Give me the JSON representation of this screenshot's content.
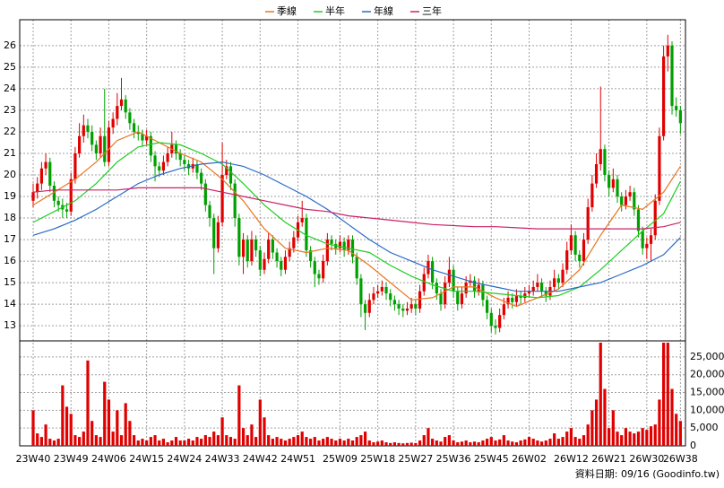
{
  "chart_data": {
    "type": "candlestick",
    "legend": "top",
    "grid": true,
    "up_color": "#e00000",
    "down_color": "#00a000",
    "xlim": [
      -3.2,
      155.2
    ],
    "xticks": [
      {
        "value": 0,
        "label": "23W40"
      },
      {
        "value": 9,
        "label": "23W49"
      },
      {
        "value": 18,
        "label": "24W06"
      },
      {
        "value": 27,
        "label": "24W15"
      },
      {
        "value": 36,
        "label": "24W24"
      },
      {
        "value": 45,
        "label": "24W33"
      },
      {
        "value": 54,
        "label": "24W42"
      },
      {
        "value": 63,
        "label": "24W51"
      },
      {
        "value": 73,
        "label": "25W09"
      },
      {
        "value": 82,
        "label": "25W18"
      },
      {
        "value": 91,
        "label": "25W27"
      },
      {
        "value": 100,
        "label": "25W36"
      },
      {
        "value": 109,
        "label": "25W45"
      },
      {
        "value": 118,
        "label": "26W02"
      },
      {
        "value": 128,
        "label": "26W12"
      },
      {
        "value": 137,
        "label": "26W21"
      },
      {
        "value": 146,
        "label": "26W30"
      },
      {
        "value": 154,
        "label": "26W38"
      }
    ],
    "ylim": [
      12.3,
      27.2
    ],
    "yticks": [
      13,
      14,
      15,
      16,
      17,
      18,
      19,
      20,
      21,
      22,
      23,
      24,
      25,
      26
    ],
    "ohlc": [
      [
        18.8,
        19.6,
        18.5,
        19.2
      ],
      [
        19.2,
        19.9,
        18.9,
        19.6
      ],
      [
        19.6,
        20.6,
        19.3,
        20.3
      ],
      [
        20.3,
        21.0,
        20.0,
        20.6
      ],
      [
        20.6,
        20.8,
        19.2,
        19.5
      ],
      [
        19.5,
        19.7,
        18.5,
        18.8
      ],
      [
        18.8,
        19.0,
        18.3,
        18.6
      ],
      [
        18.6,
        18.9,
        18.0,
        18.4
      ],
      [
        18.4,
        18.7,
        18.0,
        18.3
      ],
      [
        18.3,
        20.1,
        18.1,
        19.8
      ],
      [
        19.8,
        21.3,
        19.6,
        21.0
      ],
      [
        21.0,
        22.4,
        20.8,
        21.8
      ],
      [
        21.8,
        22.8,
        21.5,
        22.3
      ],
      [
        22.3,
        22.6,
        21.7,
        22.0
      ],
      [
        22.0,
        22.3,
        21.1,
        21.4
      ],
      [
        21.4,
        21.6,
        20.7,
        21.0
      ],
      [
        21.0,
        22.2,
        20.8,
        21.8
      ],
      [
        21.8,
        24.0,
        20.4,
        20.6
      ],
      [
        20.6,
        22.5,
        20.4,
        22.2
      ],
      [
        22.2,
        22.9,
        21.9,
        22.6
      ],
      [
        22.6,
        23.8,
        22.3,
        23.2
      ],
      [
        23.2,
        24.5,
        23.0,
        23.5
      ],
      [
        23.5,
        23.7,
        22.6,
        22.9
      ],
      [
        22.9,
        23.1,
        22.1,
        22.4
      ],
      [
        22.4,
        22.6,
        21.7,
        22.0
      ],
      [
        22.0,
        22.3,
        21.6,
        21.9
      ],
      [
        21.9,
        22.1,
        21.3,
        21.6
      ],
      [
        21.6,
        22.1,
        21.4,
        21.8
      ],
      [
        21.8,
        22.0,
        20.6,
        20.9
      ],
      [
        20.9,
        21.1,
        19.7,
        20.4
      ],
      [
        20.4,
        20.6,
        19.9,
        20.2
      ],
      [
        20.2,
        20.9,
        20.0,
        20.6
      ],
      [
        20.6,
        21.3,
        20.4,
        21.0
      ],
      [
        21.0,
        22.0,
        20.8,
        21.4
      ],
      [
        21.4,
        21.6,
        20.7,
        21.0
      ],
      [
        21.0,
        21.2,
        20.4,
        20.7
      ],
      [
        20.7,
        20.9,
        20.2,
        20.5
      ],
      [
        20.5,
        20.7,
        20.0,
        20.3
      ],
      [
        20.3,
        20.8,
        20.1,
        20.5
      ],
      [
        20.5,
        20.7,
        19.8,
        20.1
      ],
      [
        20.1,
        20.3,
        19.3,
        19.6
      ],
      [
        19.6,
        19.8,
        18.3,
        18.6
      ],
      [
        18.6,
        18.8,
        17.6,
        18.0
      ],
      [
        18.0,
        18.2,
        15.4,
        16.6
      ],
      [
        16.6,
        18.1,
        16.4,
        17.8
      ],
      [
        17.8,
        21.5,
        17.6,
        20.0
      ],
      [
        20.0,
        20.7,
        19.8,
        20.4
      ],
      [
        20.4,
        20.6,
        19.3,
        19.6
      ],
      [
        19.6,
        19.8,
        17.6,
        18.0
      ],
      [
        18.0,
        18.2,
        15.8,
        16.2
      ],
      [
        16.2,
        17.3,
        15.4,
        17.0
      ],
      [
        17.0,
        17.2,
        15.7,
        16.0
      ],
      [
        16.0,
        17.4,
        15.8,
        17.0
      ],
      [
        17.0,
        17.2,
        16.2,
        16.5
      ],
      [
        16.5,
        16.7,
        15.3,
        15.6
      ],
      [
        15.6,
        16.4,
        15.4,
        16.1
      ],
      [
        16.1,
        17.3,
        15.9,
        17.0
      ],
      [
        17.0,
        17.2,
        16.1,
        16.4
      ],
      [
        16.4,
        16.6,
        15.7,
        16.0
      ],
      [
        16.0,
        16.2,
        15.3,
        15.6
      ],
      [
        15.6,
        16.5,
        15.4,
        16.2
      ],
      [
        16.2,
        16.9,
        16.0,
        16.6
      ],
      [
        16.6,
        17.4,
        16.4,
        17.1
      ],
      [
        17.1,
        18.1,
        16.9,
        17.8
      ],
      [
        17.8,
        18.8,
        17.6,
        18.0
      ],
      [
        18.0,
        18.2,
        16.2,
        16.5
      ],
      [
        16.5,
        16.7,
        15.7,
        16.0
      ],
      [
        16.0,
        16.2,
        14.8,
        15.4
      ],
      [
        15.4,
        15.6,
        14.9,
        15.2
      ],
      [
        15.2,
        16.3,
        15.0,
        16.0
      ],
      [
        16.0,
        17.3,
        15.8,
        17.0
      ],
      [
        17.0,
        17.2,
        16.5,
        16.8
      ],
      [
        16.8,
        17.0,
        16.3,
        16.6
      ],
      [
        16.6,
        17.2,
        16.4,
        16.9
      ],
      [
        16.9,
        17.1,
        16.2,
        16.5
      ],
      [
        16.5,
        17.2,
        16.3,
        17.0
      ],
      [
        17.0,
        17.2,
        15.9,
        16.2
      ],
      [
        16.2,
        16.4,
        14.9,
        15.2
      ],
      [
        15.2,
        15.4,
        13.4,
        14.0
      ],
      [
        14.0,
        14.2,
        12.8,
        13.6
      ],
      [
        13.6,
        14.5,
        13.4,
        14.2
      ],
      [
        14.2,
        14.8,
        14.0,
        14.5
      ],
      [
        14.5,
        14.9,
        14.3,
        14.6
      ],
      [
        14.6,
        15.1,
        14.4,
        14.8
      ],
      [
        14.8,
        15.0,
        14.2,
        14.5
      ],
      [
        14.5,
        14.7,
        13.9,
        14.2
      ],
      [
        14.2,
        14.4,
        13.7,
        14.0
      ],
      [
        14.0,
        14.2,
        13.5,
        13.8
      ],
      [
        13.8,
        14.0,
        13.4,
        13.7
      ],
      [
        13.7,
        14.1,
        13.5,
        13.8
      ],
      [
        13.8,
        14.3,
        13.6,
        14.0
      ],
      [
        14.0,
        14.2,
        13.5,
        13.8
      ],
      [
        13.8,
        14.9,
        13.6,
        14.6
      ],
      [
        14.6,
        15.7,
        14.4,
        15.4
      ],
      [
        15.4,
        16.3,
        15.2,
        16.0
      ],
      [
        16.0,
        16.2,
        14.7,
        15.0
      ],
      [
        15.0,
        15.2,
        14.2,
        14.5
      ],
      [
        14.5,
        14.7,
        13.7,
        14.0
      ],
      [
        14.0,
        15.3,
        13.8,
        15.0
      ],
      [
        15.0,
        16.2,
        14.8,
        15.6
      ],
      [
        15.6,
        15.8,
        14.3,
        14.6
      ],
      [
        14.6,
        14.8,
        13.7,
        14.0
      ],
      [
        14.0,
        14.8,
        13.8,
        14.5
      ],
      [
        14.5,
        15.3,
        14.3,
        15.0
      ],
      [
        15.0,
        15.4,
        14.8,
        15.1
      ],
      [
        15.1,
        15.3,
        14.3,
        14.6
      ],
      [
        14.6,
        15.2,
        14.4,
        14.9
      ],
      [
        14.9,
        15.1,
        13.9,
        14.2
      ],
      [
        14.2,
        14.4,
        13.3,
        13.6
      ],
      [
        13.6,
        13.8,
        12.7,
        13.0
      ],
      [
        13.0,
        13.3,
        12.6,
        12.9
      ],
      [
        12.9,
        13.8,
        12.7,
        13.5
      ],
      [
        13.5,
        14.3,
        13.3,
        14.0
      ],
      [
        14.0,
        14.6,
        13.8,
        14.3
      ],
      [
        14.3,
        14.5,
        13.8,
        14.1
      ],
      [
        14.1,
        14.7,
        13.9,
        14.4
      ],
      [
        14.4,
        14.6,
        14.0,
        14.3
      ],
      [
        14.3,
        14.8,
        14.1,
        14.5
      ],
      [
        14.5,
        14.9,
        14.3,
        14.6
      ],
      [
        14.6,
        15.1,
        14.4,
        14.8
      ],
      [
        14.8,
        15.4,
        14.6,
        15.0
      ],
      [
        15.0,
        15.2,
        14.3,
        14.6
      ],
      [
        14.6,
        14.8,
        14.1,
        14.4
      ],
      [
        14.4,
        15.1,
        14.2,
        14.8
      ],
      [
        14.8,
        15.6,
        14.6,
        15.2
      ],
      [
        15.2,
        15.4,
        14.7,
        15.0
      ],
      [
        15.0,
        15.9,
        14.8,
        15.6
      ],
      [
        15.6,
        16.9,
        15.4,
        16.5
      ],
      [
        16.5,
        17.7,
        16.3,
        17.2
      ],
      [
        17.2,
        17.4,
        16.0,
        16.3
      ],
      [
        16.3,
        16.5,
        15.7,
        16.0
      ],
      [
        16.0,
        17.3,
        15.8,
        17.0
      ],
      [
        17.0,
        18.9,
        16.8,
        18.5
      ],
      [
        18.5,
        20.0,
        18.3,
        19.6
      ],
      [
        19.6,
        21.0,
        19.4,
        20.5
      ],
      [
        20.5,
        24.1,
        20.2,
        21.2
      ],
      [
        21.2,
        21.4,
        19.7,
        20.0
      ],
      [
        20.0,
        20.2,
        19.0,
        19.4
      ],
      [
        19.4,
        20.3,
        19.2,
        19.8
      ],
      [
        19.8,
        20.0,
        18.7,
        19.0
      ],
      [
        19.0,
        19.2,
        18.3,
        18.6
      ],
      [
        18.6,
        19.3,
        18.4,
        19.0
      ],
      [
        19.0,
        19.5,
        18.8,
        19.2
      ],
      [
        19.2,
        19.4,
        18.1,
        18.4
      ],
      [
        18.4,
        18.6,
        17.1,
        17.4
      ],
      [
        17.4,
        17.6,
        16.3,
        16.6
      ],
      [
        16.6,
        17.1,
        16.1,
        16.8
      ],
      [
        16.8,
        17.5,
        16.0,
        17.2
      ],
      [
        17.2,
        19.1,
        17.0,
        18.8
      ],
      [
        18.8,
        22.2,
        18.6,
        21.8
      ],
      [
        21.8,
        26.0,
        21.6,
        25.5
      ],
      [
        25.5,
        26.5,
        24.8,
        26.0
      ],
      [
        26.0,
        26.2,
        22.8,
        23.2
      ],
      [
        23.2,
        23.6,
        22.7,
        23.0
      ],
      [
        23.0,
        23.2,
        21.9,
        22.4
      ]
    ],
    "x": [
      0,
      5,
      10,
      15,
      20,
      25,
      30,
      35,
      40,
      45,
      50,
      55,
      60,
      65,
      70,
      75,
      80,
      85,
      90,
      95,
      100,
      105,
      110,
      115,
      120,
      125,
      130,
      135,
      140,
      145,
      150,
      154
    ],
    "series": [
      {
        "name": "季線",
        "color": "#e8761e",
        "values": [
          18.6,
          19.2,
          19.8,
          20.6,
          21.6,
          22.0,
          21.5,
          21.0,
          20.6,
          19.8,
          18.8,
          17.5,
          16.6,
          16.4,
          16.6,
          16.5,
          15.8,
          15.0,
          14.2,
          14.3,
          14.8,
          14.8,
          14.3,
          13.9,
          14.3,
          14.7,
          15.6,
          17.2,
          18.6,
          18.4,
          19.2,
          20.4
        ]
      },
      {
        "name": "半年",
        "color": "#22cc22",
        "values": [
          17.8,
          18.3,
          18.8,
          19.6,
          20.6,
          21.3,
          21.5,
          21.4,
          21.0,
          20.5,
          19.6,
          18.6,
          17.8,
          17.2,
          16.8,
          16.6,
          16.4,
          15.8,
          15.3,
          14.9,
          14.6,
          14.6,
          14.5,
          14.4,
          14.3,
          14.4,
          14.8,
          15.6,
          16.5,
          17.4,
          18.2,
          19.7
        ]
      },
      {
        "name": "年線",
        "color": "#2a6ac8",
        "values": [
          17.2,
          17.5,
          17.9,
          18.4,
          19.0,
          19.6,
          20.0,
          20.3,
          20.5,
          20.6,
          20.4,
          20.0,
          19.5,
          19.0,
          18.4,
          17.7,
          17.0,
          16.4,
          16.0,
          15.6,
          15.3,
          15.0,
          14.8,
          14.6,
          14.6,
          14.6,
          14.8,
          15.0,
          15.4,
          15.8,
          16.3,
          17.1
        ]
      },
      {
        "name": "三年",
        "color": "#cc2266",
        "values": [
          19.2,
          19.3,
          19.3,
          19.3,
          19.3,
          19.4,
          19.4,
          19.4,
          19.4,
          19.2,
          19.0,
          18.8,
          18.6,
          18.4,
          18.3,
          18.1,
          18.0,
          17.9,
          17.8,
          17.7,
          17.65,
          17.6,
          17.6,
          17.55,
          17.5,
          17.5,
          17.5,
          17.5,
          17.5,
          17.5,
          17.6,
          17.8
        ]
      }
    ],
    "volume": {
      "color": "#e00000",
      "ylim": [
        0,
        29000
      ],
      "yticks": [
        0,
        {
          "value": 5000,
          "label": "5,000"
        },
        {
          "value": 10000,
          "label": "10,000"
        },
        {
          "value": 15000,
          "label": "15,000"
        },
        {
          "value": 20000,
          "label": "20,000"
        },
        {
          "value": 25000,
          "label": "25,000"
        }
      ],
      "values": [
        10000,
        3500,
        2500,
        6000,
        2000,
        1500,
        2000,
        17000,
        11000,
        9000,
        3000,
        2500,
        4000,
        24000,
        7000,
        3000,
        2500,
        18000,
        13000,
        4000,
        10000,
        3000,
        12000,
        7000,
        3000,
        1500,
        2000,
        1500,
        2500,
        3000,
        1500,
        2000,
        1000,
        1500,
        2500,
        1500,
        1500,
        2000,
        1500,
        2500,
        2000,
        3000,
        2500,
        4000,
        3000,
        8000,
        3000,
        2500,
        2000,
        17000,
        5000,
        3000,
        6000,
        2500,
        13000,
        8000,
        3000,
        2000,
        2500,
        2000,
        1500,
        2000,
        2500,
        3000,
        4000,
        2500,
        2000,
        2500,
        1500,
        2000,
        2500,
        2000,
        1500,
        2000,
        1500,
        2000,
        1500,
        2500,
        3000,
        4000,
        1500,
        1000,
        1200,
        1500,
        1000,
        800,
        1000,
        800,
        700,
        800,
        900,
        800,
        1500,
        3000,
        5000,
        2000,
        1500,
        1200,
        2500,
        3000,
        1500,
        1000,
        1200,
        1500,
        1000,
        1200,
        1000,
        1500,
        2000,
        2500,
        1500,
        1800,
        3000,
        1500,
        1200,
        1000,
        1500,
        1800,
        2500,
        2000,
        1500,
        1200,
        1500,
        2000,
        3500,
        2000,
        2500,
        4000,
        5000,
        2500,
        2000,
        3000,
        6000,
        10000,
        13000,
        29000,
        16000,
        5000,
        10000,
        4000,
        3000,
        5000,
        4000,
        3500,
        4000,
        5000,
        4500,
        5500,
        6000,
        13000,
        29000,
        29000,
        16000,
        9000,
        7000
      ]
    },
    "source": "資料日期: 09/16 (Goodinfo.tw)"
  }
}
